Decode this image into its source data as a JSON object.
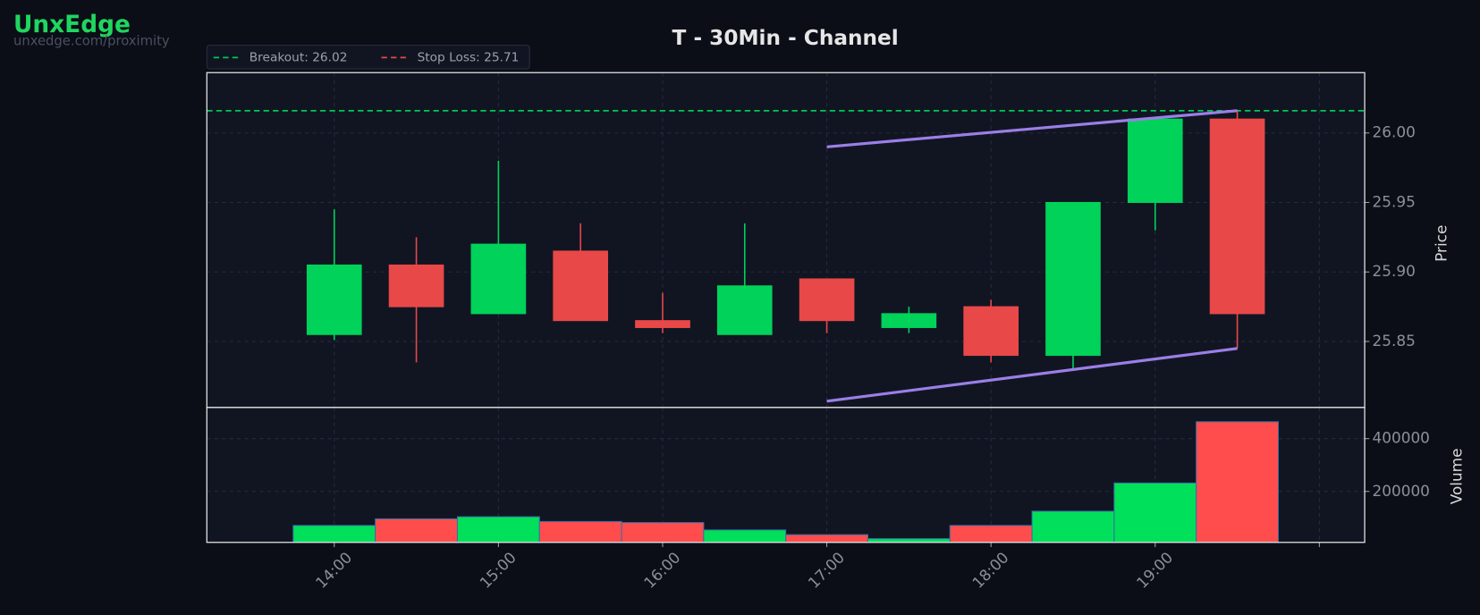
{
  "brand": {
    "name": "UnxEdge",
    "url": "unxedge.com/proximity"
  },
  "chart_data": {
    "type": "candlestick",
    "title": "T - 30Min - Channel",
    "categories": [
      "14:00",
      null,
      "15:00",
      null,
      "16:00",
      null,
      "17:00",
      null,
      "18:00",
      null,
      "19:00",
      null
    ],
    "open": [
      25.855,
      25.905,
      25.87,
      25.915,
      25.865,
      25.855,
      25.895,
      25.86,
      25.875,
      25.84,
      25.95,
      26.01
    ],
    "high": [
      25.945,
      25.925,
      25.98,
      25.935,
      25.885,
      25.935,
      25.895,
      25.875,
      25.88,
      25.95,
      26.01,
      26.016
    ],
    "low": [
      25.851,
      25.835,
      25.87,
      25.865,
      25.856,
      25.855,
      25.856,
      25.856,
      25.835,
      25.83,
      25.93,
      25.845
    ],
    "close": [
      25.905,
      25.875,
      25.92,
      25.865,
      25.86,
      25.89,
      25.865,
      25.87,
      25.84,
      25.95,
      26.01,
      25.87
    ],
    "up_color": "#00d25a",
    "down_color": "#e84848",
    "xlim": [
      -1.552,
      12.552
    ],
    "xticks": [
      0,
      2,
      4,
      6,
      8,
      10,
      12
    ],
    "ylabel": "Price",
    "ylim": [
      25.8025,
      26.0434
    ],
    "yticks": [
      25.85,
      {
        "value": 25.9,
        "label": "25.90"
      },
      25.95,
      {
        "value": 26,
        "label": "26.00"
      }
    ],
    "grid": true,
    "levels": [
      {
        "name": "Breakout: 26.02",
        "value": 26.016,
        "color": "#00c853"
      },
      {
        "name": "Stop Loss: 25.71",
        "value": 25.71,
        "color": "#e84848"
      }
    ],
    "channel": {
      "color": "#9b7fe6",
      "x": [
        6,
        11
      ],
      "upper": [
        25.99,
        26.016
      ],
      "lower": [
        25.807,
        25.845
      ]
    },
    "volume": {
      "ylabel": "Volume",
      "values": [
        71000,
        96000,
        104000,
        86000,
        82000,
        54000,
        36000,
        21000,
        71000,
        125000,
        232000,
        464000
      ],
      "up_color": "#00e05a",
      "down_color": "#ff4d4d",
      "ylim": [
        7000,
        518000
      ],
      "yticks": [
        200000,
        400000
      ]
    }
  }
}
